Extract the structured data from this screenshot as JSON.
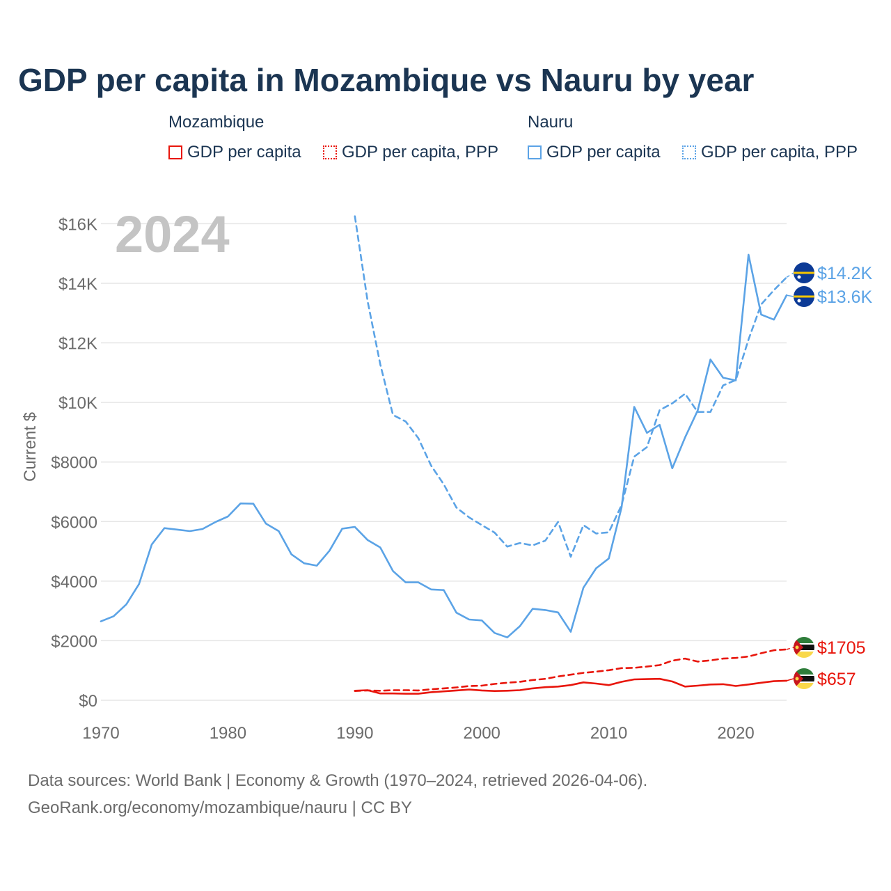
{
  "colors": {
    "mozambique": "#e8160c",
    "nauru": "#5ba3e6",
    "grid": "#e6e6e6",
    "axis_text": "#6b6b6b",
    "year_watermark": "#c4c4c4"
  },
  "legend": {
    "groups": [
      {
        "title": "Mozambique",
        "items": [
          {
            "label": "GDP per capita",
            "color": "#e8160c",
            "style": "solid"
          },
          {
            "label": "GDP per capita, PPP",
            "color": "#e8160c",
            "style": "dotted"
          }
        ]
      },
      {
        "title": "Nauru",
        "items": [
          {
            "label": "GDP per capita",
            "color": "#5ba3e6",
            "style": "solid"
          },
          {
            "label": "GDP per capita, PPP",
            "color": "#5ba3e6",
            "style": "dotted"
          }
        ]
      }
    ]
  },
  "footer": {
    "line1": "Data sources: World Bank | Economy & Growth (1970–2024, retrieved 2026-04-06).",
    "line2": "GeoRank.org/economy/mozambique/nauru | CC BY"
  },
  "chart_data": {
    "type": "line",
    "title": "GDP per capita in Mozambique vs Nauru by year",
    "year_label": "2024",
    "xlabel": "",
    "ylabel": "Current $",
    "xlim": [
      1970,
      2024
    ],
    "ylim": [
      0,
      16500
    ],
    "x_ticks": [
      1970,
      1980,
      1990,
      2000,
      2010,
      2020
    ],
    "y_ticks": [
      {
        "value": 0,
        "label": "$0"
      },
      {
        "value": 2000,
        "label": "$2000"
      },
      {
        "value": 4000,
        "label": "$4000"
      },
      {
        "value": 6000,
        "label": "$6000"
      },
      {
        "value": 8000,
        "label": "$8000"
      },
      {
        "value": 10000,
        "label": "$10K"
      },
      {
        "value": 12000,
        "label": "$12K"
      },
      {
        "value": 14000,
        "label": "$14K"
      },
      {
        "value": 16000,
        "label": "$16K"
      }
    ],
    "grid": true,
    "series": [
      {
        "name": "Nauru GDP per capita",
        "country": "Nauru",
        "color": "#5ba3e6",
        "dashed": false,
        "end_label": "$13.6K",
        "x": [
          1970,
          1971,
          1972,
          1973,
          1974,
          1975,
          1976,
          1977,
          1978,
          1979,
          1980,
          1981,
          1982,
          1983,
          1984,
          1985,
          1986,
          1987,
          1988,
          1989,
          1990,
          1991,
          1992,
          1993,
          1994,
          1995,
          1996,
          1997,
          1998,
          1999,
          2000,
          2001,
          2002,
          2003,
          2004,
          2005,
          2006,
          2007,
          2008,
          2009,
          2010,
          2011,
          2012,
          2013,
          2014,
          2015,
          2016,
          2017,
          2018,
          2019,
          2020,
          2021,
          2022,
          2023,
          2024
        ],
        "values": [
          2650,
          2820,
          3220,
          3900,
          5230,
          5780,
          5730,
          5680,
          5750,
          5980,
          6170,
          6610,
          6600,
          5930,
          5680,
          4900,
          4600,
          4520,
          5020,
          5760,
          5820,
          5380,
          5130,
          4340,
          3960,
          3960,
          3720,
          3700,
          2940,
          2710,
          2680,
          2260,
          2110,
          2490,
          3070,
          3030,
          2950,
          2300,
          3780,
          4430,
          4760,
          6470,
          9850,
          8980,
          9250,
          7790,
          8820,
          9730,
          11440,
          10830,
          10740,
          14960,
          12950,
          12780,
          13600
        ]
      },
      {
        "name": "Nauru GDP per capita, PPP",
        "country": "Nauru",
        "color": "#5ba3e6",
        "dashed": true,
        "end_label": "$14.2K",
        "x": [
          1990,
          1991,
          1992,
          1993,
          1994,
          1995,
          1996,
          1997,
          1998,
          1999,
          2000,
          2001,
          2002,
          2003,
          2004,
          2005,
          2006,
          2007,
          2008,
          2009,
          2010,
          2011,
          2012,
          2013,
          2014,
          2015,
          2016,
          2017,
          2018,
          2019,
          2020,
          2021,
          2022,
          2023,
          2024
        ],
        "values": [
          16250,
          13400,
          11280,
          9580,
          9360,
          8800,
          7880,
          7250,
          6470,
          6140,
          5880,
          5630,
          5160,
          5280,
          5200,
          5360,
          5990,
          4820,
          5880,
          5600,
          5640,
          6550,
          8180,
          8500,
          9740,
          9970,
          10290,
          9680,
          9680,
          10570,
          10750,
          12110,
          13290,
          13770,
          14200
        ]
      },
      {
        "name": "Mozambique GDP per capita",
        "country": "Mozambique",
        "color": "#e8160c",
        "dashed": false,
        "end_label": "$657",
        "x": [
          1990,
          1991,
          1992,
          1993,
          1994,
          1995,
          1996,
          1997,
          1998,
          1999,
          2000,
          2001,
          2002,
          2003,
          2004,
          2005,
          2006,
          2007,
          2008,
          2009,
          2010,
          2011,
          2012,
          2013,
          2014,
          2015,
          2016,
          2017,
          2018,
          2019,
          2020,
          2021,
          2022,
          2023,
          2024
        ],
        "values": [
          320,
          340,
          230,
          230,
          220,
          220,
          270,
          300,
          330,
          360,
          330,
          310,
          320,
          340,
          400,
          440,
          460,
          510,
          600,
          560,
          510,
          620,
          700,
          710,
          720,
          630,
          460,
          490,
          530,
          540,
          480,
          530,
          590,
          640,
          657
        ]
      },
      {
        "name": "Mozambique GDP per capita, PPP",
        "country": "Mozambique",
        "color": "#e8160c",
        "dashed": true,
        "end_label": "$1705",
        "x": [
          1990,
          1991,
          1992,
          1993,
          1994,
          1995,
          1996,
          1997,
          1998,
          1999,
          2000,
          2001,
          2002,
          2003,
          2004,
          2005,
          2006,
          2007,
          2008,
          2009,
          2010,
          2011,
          2012,
          2013,
          2014,
          2015,
          2016,
          2017,
          2018,
          2019,
          2020,
          2021,
          2022,
          2023,
          2024
        ],
        "values": [
          310,
          330,
          320,
          340,
          340,
          330,
          370,
          400,
          430,
          480,
          490,
          550,
          590,
          620,
          680,
          720,
          800,
          860,
          920,
          960,
          1010,
          1080,
          1090,
          1130,
          1180,
          1330,
          1400,
          1300,
          1340,
          1400,
          1420,
          1470,
          1580,
          1680,
          1705
        ]
      }
    ]
  }
}
